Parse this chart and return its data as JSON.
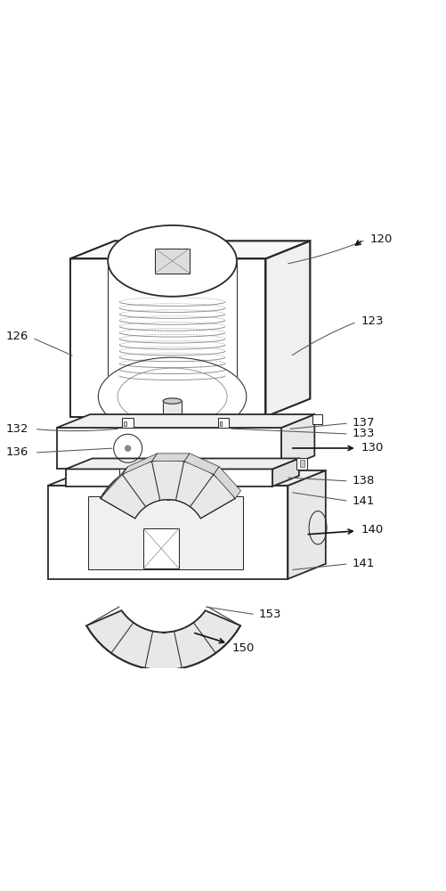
{
  "bg_color": "#ffffff",
  "lc": "#2a2a2a",
  "ll": "#888888",
  "dc": "#aaaaaa",
  "lw_main": 1.3,
  "lw_thin": 0.75,
  "lw_dashed": 0.55,
  "fs": 9.5,
  "fig_w": 5.02,
  "fig_h": 10.0,
  "dpi": 100
}
